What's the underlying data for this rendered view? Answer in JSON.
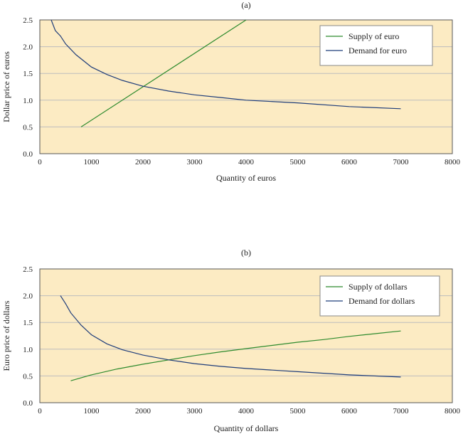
{
  "colors": {
    "plot_background": "#fcebc3",
    "frame": "#555555",
    "grid": "#bdbdbd",
    "supply": "#2e8b2e",
    "demand": "#1f3d7a"
  },
  "chart_data": [
    {
      "type": "line",
      "title": "(a)",
      "xlabel": "Quantity of euros",
      "ylabel": "Dollar price of euros",
      "xlim": [
        0,
        8000
      ],
      "ylim": [
        0,
        2.5
      ],
      "x_ticks": [
        "0",
        "1000",
        "2000",
        "3000",
        "4000",
        "5000",
        "6000",
        "7000",
        "8000"
      ],
      "y_ticks": [
        "0.0",
        "0.5",
        "1.0",
        "1.5",
        "2.0",
        "2.5"
      ],
      "grid": "horizontal",
      "legend_position": "top-right",
      "series": [
        {
          "name": "Supply of euro",
          "color_key": "supply",
          "points": [
            [
              800,
              0.5
            ],
            [
              4000,
              2.5
            ]
          ]
        },
        {
          "name": "Demand for euro",
          "color_key": "demand",
          "points": [
            [
              220,
              2.5
            ],
            [
              300,
              2.3
            ],
            [
              400,
              2.2
            ],
            [
              500,
              2.05
            ],
            [
              700,
              1.85
            ],
            [
              1000,
              1.62
            ],
            [
              1300,
              1.48
            ],
            [
              1600,
              1.37
            ],
            [
              2000,
              1.26
            ],
            [
              2500,
              1.17
            ],
            [
              3000,
              1.1
            ],
            [
              3500,
              1.05
            ],
            [
              4000,
              1.0
            ],
            [
              5000,
              0.95
            ],
            [
              6000,
              0.88
            ],
            [
              7000,
              0.84
            ]
          ]
        }
      ]
    },
    {
      "type": "line",
      "title": "(b)",
      "xlabel": "Quantity of dollars",
      "ylabel": "Euro price of dollars",
      "xlim": [
        0,
        8000
      ],
      "ylim": [
        0,
        2.5
      ],
      "x_ticks": [
        "0",
        "1000",
        "2000",
        "3000",
        "4000",
        "5000",
        "6000",
        "7000",
        "8000"
      ],
      "y_ticks": [
        "0.0",
        "0.5",
        "1.0",
        "1.5",
        "2.0",
        "2.5"
      ],
      "grid": "horizontal",
      "legend_position": "top-right",
      "series": [
        {
          "name": "Supply of dollars",
          "color_key": "supply",
          "points": [
            [
              600,
              0.41
            ],
            [
              1000,
              0.52
            ],
            [
              1500,
              0.63
            ],
            [
              2000,
              0.72
            ],
            [
              2500,
              0.8
            ],
            [
              3000,
              0.88
            ],
            [
              3500,
              0.95
            ],
            [
              4000,
              1.01
            ],
            [
              4500,
              1.07
            ],
            [
              5000,
              1.13
            ],
            [
              5500,
              1.18
            ],
            [
              6000,
              1.24
            ],
            [
              6500,
              1.29
            ],
            [
              7000,
              1.34
            ]
          ]
        },
        {
          "name": "Demand for dollars",
          "color_key": "demand",
          "points": [
            [
              400,
              2.0
            ],
            [
              500,
              1.85
            ],
            [
              600,
              1.68
            ],
            [
              800,
              1.45
            ],
            [
              1000,
              1.27
            ],
            [
              1300,
              1.1
            ],
            [
              1600,
              0.99
            ],
            [
              2000,
              0.89
            ],
            [
              2500,
              0.8
            ],
            [
              3000,
              0.73
            ],
            [
              3500,
              0.68
            ],
            [
              4000,
              0.64
            ],
            [
              5000,
              0.58
            ],
            [
              6000,
              0.52
            ],
            [
              7000,
              0.48
            ]
          ]
        }
      ]
    }
  ]
}
